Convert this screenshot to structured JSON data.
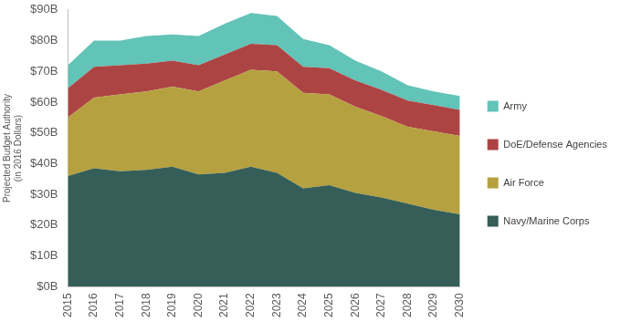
{
  "chart_data": {
    "type": "area",
    "stacked": true,
    "grid": false,
    "legend": "right",
    "y_label": [
      "Projected Budget Authority",
      "(in 2016 Dollars)"
    ],
    "categories": [
      "2015",
      "2016",
      "2017",
      "2018",
      "2019",
      "2020",
      "2021",
      "2022",
      "2023",
      "2024",
      "2025",
      "2026",
      "2027",
      "2028",
      "2029",
      "2030"
    ],
    "ylim": [
      0,
      90
    ],
    "yticks": [
      {
        "value": 0,
        "label": "$0B"
      },
      {
        "value": 10,
        "label": "$10B"
      },
      {
        "value": 20,
        "label": "$20B"
      },
      {
        "value": 30,
        "label": "$30B"
      },
      {
        "value": 40,
        "label": "$40B"
      },
      {
        "value": 50,
        "label": "$50B"
      },
      {
        "value": 60,
        "label": "$60B"
      },
      {
        "value": 70,
        "label": "$70B"
      },
      {
        "value": 80,
        "label": "$80B"
      },
      {
        "value": 90,
        "label": "$90B"
      }
    ],
    "series": [
      {
        "name": "Navy/Marine Corps",
        "color": "#355e58",
        "values": [
          36,
          38.5,
          37.5,
          38,
          39,
          36.5,
          37,
          39,
          37,
          32,
          33,
          30.5,
          29,
          27,
          25,
          23.5
        ]
      },
      {
        "name": "Air Force",
        "color": "#b5a13f",
        "values": [
          19,
          23,
          25,
          25.5,
          26,
          27,
          30,
          31.5,
          33,
          31,
          29.5,
          28,
          26.5,
          25,
          25.5,
          25.5
        ]
      },
      {
        "name": "DoE/Defense Agencies",
        "color": "#ad4444",
        "values": [
          9.5,
          10,
          9.5,
          9,
          8.5,
          8.5,
          8.5,
          8.5,
          8.5,
          8.5,
          8.5,
          8.5,
          8.5,
          8.5,
          8.5,
          8.5
        ]
      },
      {
        "name": "Army",
        "color": "#62c3b7",
        "values": [
          7.5,
          8.5,
          8,
          9,
          8.5,
          9.5,
          10,
          10,
          9.5,
          9,
          7.5,
          6.5,
          6,
          5,
          4.5,
          4.5
        ]
      }
    ]
  }
}
